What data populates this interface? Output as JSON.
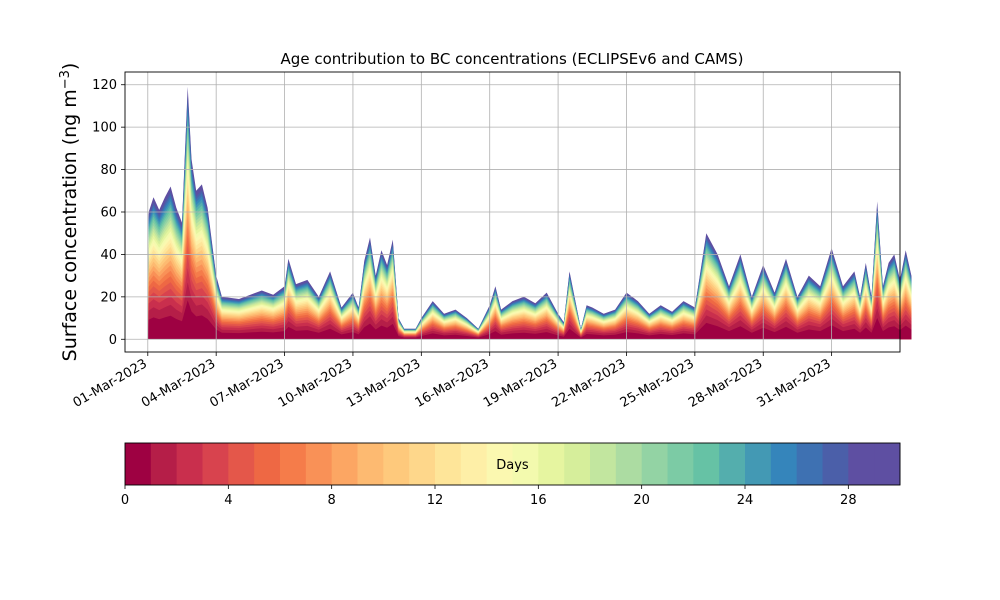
{
  "chart_data": {
    "type": "area",
    "stacked": true,
    "title": "Age contribution to BC concentrations (ECLIPSEv6 and CAMS)",
    "ylabel": "Surface concentration (ng m",
    "ylabel_sup": "−3",
    "ylabel_close": ")",
    "ylim": [
      -6,
      126
    ],
    "yticks": [
      0,
      20,
      40,
      60,
      80,
      100,
      120
    ],
    "x_start": "2023-02-28",
    "x_end": "2023-04-03",
    "xticks": [
      {
        "date": "2023-03-01",
        "label": "01-Mar-2023"
      },
      {
        "date": "2023-03-04",
        "label": "04-Mar-2023"
      },
      {
        "date": "2023-03-07",
        "label": "07-Mar-2023"
      },
      {
        "date": "2023-03-10",
        "label": "10-Mar-2023"
      },
      {
        "date": "2023-03-13",
        "label": "13-Mar-2023"
      },
      {
        "date": "2023-03-16",
        "label": "16-Mar-2023"
      },
      {
        "date": "2023-03-19",
        "label": "19-Mar-2023"
      },
      {
        "date": "2023-03-22",
        "label": "22-Mar-2023"
      },
      {
        "date": "2023-03-25",
        "label": "25-Mar-2023"
      },
      {
        "date": "2023-03-28",
        "label": "28-Mar-2023"
      },
      {
        "date": "2023-03-31",
        "label": "31-Mar-2023"
      }
    ],
    "grid": true,
    "total_concentration": [
      [
        "2023-03-01T00:00",
        0
      ],
      [
        "2023-03-01T01:00",
        60
      ],
      [
        "2023-03-01T06:00",
        67
      ],
      [
        "2023-03-01T12:00",
        61
      ],
      [
        "2023-03-01T18:00",
        67
      ],
      [
        "2023-03-02T00:00",
        72
      ],
      [
        "2023-03-02T06:00",
        62
      ],
      [
        "2023-03-02T12:00",
        55
      ],
      [
        "2023-03-02T18:00",
        119
      ],
      [
        "2023-03-02T22:00",
        85
      ],
      [
        "2023-03-03T03:00",
        70
      ],
      [
        "2023-03-03T09:00",
        73
      ],
      [
        "2023-03-03T15:00",
        62
      ],
      [
        "2023-03-04T00:00",
        30
      ],
      [
        "2023-03-04T06:00",
        20
      ],
      [
        "2023-03-05T00:00",
        19
      ],
      [
        "2023-03-05T12:00",
        21
      ],
      [
        "2023-03-06T00:00",
        23
      ],
      [
        "2023-03-06T12:00",
        21
      ],
      [
        "2023-03-07T00:00",
        25
      ],
      [
        "2023-03-07T04:00",
        38
      ],
      [
        "2023-03-07T12:00",
        26
      ],
      [
        "2023-03-08T00:00",
        28
      ],
      [
        "2023-03-08T12:00",
        20
      ],
      [
        "2023-03-09T00:00",
        32
      ],
      [
        "2023-03-09T12:00",
        15
      ],
      [
        "2023-03-10T00:00",
        22
      ],
      [
        "2023-03-10T06:00",
        15
      ],
      [
        "2023-03-10T12:00",
        37
      ],
      [
        "2023-03-10T18:00",
        48
      ],
      [
        "2023-03-11T00:00",
        30
      ],
      [
        "2023-03-11T06:00",
        42
      ],
      [
        "2023-03-11T12:00",
        35
      ],
      [
        "2023-03-11T18:00",
        47
      ],
      [
        "2023-03-12T00:00",
        10
      ],
      [
        "2023-03-12T06:00",
        5
      ],
      [
        "2023-03-12T18:00",
        5
      ],
      [
        "2023-03-13T00:00",
        10
      ],
      [
        "2023-03-13T12:00",
        18
      ],
      [
        "2023-03-14T00:00",
        12
      ],
      [
        "2023-03-14T12:00",
        14
      ],
      [
        "2023-03-15T00:00",
        10
      ],
      [
        "2023-03-15T12:00",
        5
      ],
      [
        "2023-03-16T00:00",
        16
      ],
      [
        "2023-03-16T06:00",
        25
      ],
      [
        "2023-03-16T12:00",
        14
      ],
      [
        "2023-03-17T00:00",
        18
      ],
      [
        "2023-03-17T12:00",
        20
      ],
      [
        "2023-03-18T00:00",
        17
      ],
      [
        "2023-03-18T12:00",
        22
      ],
      [
        "2023-03-19T00:00",
        12
      ],
      [
        "2023-03-19T06:00",
        8
      ],
      [
        "2023-03-19T12:00",
        32
      ],
      [
        "2023-03-20T00:00",
        5
      ],
      [
        "2023-03-20T06:00",
        16
      ],
      [
        "2023-03-20T12:00",
        15
      ],
      [
        "2023-03-21T00:00",
        12
      ],
      [
        "2023-03-21T12:00",
        14
      ],
      [
        "2023-03-22T00:00",
        22
      ],
      [
        "2023-03-22T12:00",
        18
      ],
      [
        "2023-03-23T00:00",
        12
      ],
      [
        "2023-03-23T12:00",
        16
      ],
      [
        "2023-03-24T00:00",
        13
      ],
      [
        "2023-03-24T12:00",
        18
      ],
      [
        "2023-03-25T00:00",
        15
      ],
      [
        "2023-03-25T12:00",
        50
      ],
      [
        "2023-03-26T00:00",
        40
      ],
      [
        "2023-03-26T12:00",
        25
      ],
      [
        "2023-03-27T00:00",
        40
      ],
      [
        "2023-03-27T12:00",
        20
      ],
      [
        "2023-03-28T00:00",
        35
      ],
      [
        "2023-03-28T12:00",
        22
      ],
      [
        "2023-03-29T00:00",
        38
      ],
      [
        "2023-03-29T12:00",
        20
      ],
      [
        "2023-03-30T00:00",
        30
      ],
      [
        "2023-03-30T12:00",
        25
      ],
      [
        "2023-03-31T00:00",
        43
      ],
      [
        "2023-03-31T12:00",
        25
      ],
      [
        "2023-04-01T00:00",
        32
      ],
      [
        "2023-04-01T06:00",
        20
      ],
      [
        "2023-04-01T12:00",
        36
      ],
      [
        "2023-04-01T18:00",
        20
      ],
      [
        "2023-04-02T00:00",
        65
      ],
      [
        "2023-04-02T06:00",
        25
      ],
      [
        "2023-04-02T12:00",
        36
      ],
      [
        "2023-04-02T18:00",
        40
      ],
      [
        "2023-04-03T00:00",
        28
      ],
      [
        "2023-04-03T06:00",
        42
      ],
      [
        "2023-04-03T12:00",
        30
      ]
    ],
    "colorbar": {
      "label": "Days",
      "range": [
        0,
        30
      ],
      "ticks": [
        0,
        4,
        8,
        12,
        16,
        20,
        24,
        28
      ],
      "colors": [
        "#9e0142",
        "#b51e48",
        "#c92f4d",
        "#d8434e",
        "#e4574a",
        "#ee6844",
        "#f57c4a",
        "#f99157",
        "#fca663",
        "#fdba71",
        "#fec97c",
        "#fed78b",
        "#fee599",
        "#feefa7",
        "#fbf8b0",
        "#f3faae",
        "#e6f5a0",
        "#d6ee9b",
        "#c2e69f",
        "#acdca2",
        "#93d3a4",
        "#7ccba5",
        "#66c2a5",
        "#54aead",
        "#4399b4",
        "#3585bb",
        "#3e71b2",
        "#4b5fa9",
        "#5e4fa2",
        "#5e4fa2"
      ]
    }
  }
}
